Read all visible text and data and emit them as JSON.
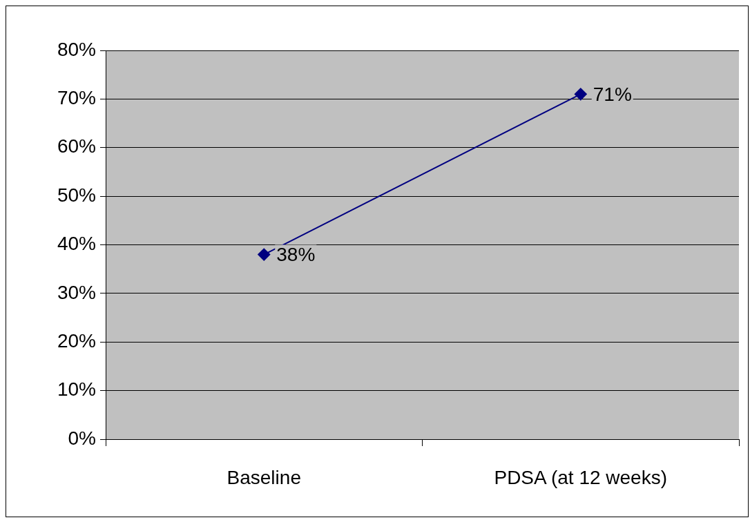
{
  "chart_data": {
    "type": "line",
    "categories": [
      "Baseline",
      "PDSA (at 12 weeks)"
    ],
    "series": [
      {
        "color": "#000080",
        "values": [
          38,
          71
        ],
        "value_labels": [
          "38%",
          "71%"
        ]
      }
    ],
    "ylim": [
      0,
      80
    ],
    "yticks": [
      {
        "value": 0,
        "label": "0%"
      },
      {
        "value": 10,
        "label": "10%"
      },
      {
        "value": 20,
        "label": "20%"
      },
      {
        "value": 30,
        "label": "30%"
      },
      {
        "value": 40,
        "label": "40%"
      },
      {
        "value": 50,
        "label": "50%"
      },
      {
        "value": 60,
        "label": "60%"
      },
      {
        "value": 70,
        "label": "70%"
      },
      {
        "value": 80,
        "label": "80%"
      }
    ],
    "grid": "y",
    "marker": "diamond",
    "line_style": "solid",
    "legend": false
  }
}
